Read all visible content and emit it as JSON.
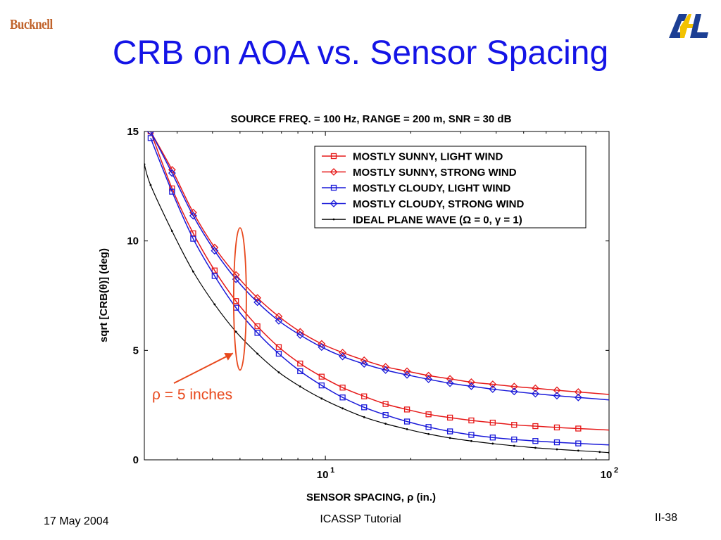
{
  "logos": {
    "left": "Bucknell",
    "right": "ARL"
  },
  "slide_title": "CRB on AOA vs. Sensor Spacing",
  "footer": {
    "date": "17 May 2004",
    "center": "ICASSP Tutorial",
    "page": "II-38"
  },
  "colors": {
    "title": "#1414e6",
    "red": "#e61919",
    "blue": "#1919d9",
    "black": "#000000",
    "annotation": "#e8481c"
  },
  "chart_data": {
    "type": "line",
    "title": "SOURCE FREQ. = 100 Hz, RANGE = 200 m, SNR = 30 dB",
    "xlabel": "SENSOR SPACING, ρ (in.)",
    "ylabel": "sqrt [CRB(θ)] (deg)",
    "xscale": "log",
    "xlim": [
      2.3,
      100
    ],
    "ylim": [
      0,
      15
    ],
    "x_ticks": [
      {
        "value": 10,
        "base": "10",
        "exp": "1"
      },
      {
        "value": 100,
        "base": "10",
        "exp": "2"
      }
    ],
    "y_ticks": [
      0,
      5,
      10,
      15
    ],
    "grid": false,
    "legend_position": "top-right",
    "series": [
      {
        "name": "MOSTLY SUNNY, LIGHT WIND",
        "color": "#e61919",
        "marker": "square",
        "x": [
          2.42,
          2.88,
          3.42,
          4.07,
          4.84,
          5.76,
          6.85,
          8.15,
          9.7,
          11.5,
          13.7,
          16.3,
          19.4,
          23.1,
          27.5,
          32.7,
          38.9,
          46.3,
          55.0,
          65.5,
          77.9
        ],
        "y": [
          15.0,
          12.4,
          10.35,
          8.65,
          7.25,
          6.1,
          5.15,
          4.4,
          3.8,
          3.3,
          2.9,
          2.55,
          2.3,
          2.08,
          1.93,
          1.8,
          1.7,
          1.6,
          1.54,
          1.48,
          1.43
        ]
      },
      {
        "name": "MOSTLY SUNNY, STRONG WIND",
        "color": "#e61919",
        "marker": "diamond",
        "x": [
          2.42,
          2.88,
          3.42,
          4.07,
          4.84,
          5.76,
          6.85,
          8.15,
          9.7,
          11.5,
          13.7,
          16.3,
          19.4,
          23.1,
          27.5,
          32.7,
          38.9,
          46.3,
          55.0,
          65.5,
          77.9
        ],
        "y": [
          15.0,
          13.25,
          11.3,
          9.7,
          8.45,
          7.4,
          6.55,
          5.85,
          5.3,
          4.9,
          4.55,
          4.25,
          4.05,
          3.85,
          3.7,
          3.55,
          3.45,
          3.35,
          3.27,
          3.18,
          3.1
        ]
      },
      {
        "name": "MOSTLY CLOUDY, LIGHT WIND",
        "color": "#1919d9",
        "marker": "square",
        "x": [
          2.42,
          2.88,
          3.42,
          4.07,
          4.84,
          5.76,
          6.85,
          8.15,
          9.7,
          11.5,
          13.7,
          16.3,
          19.4,
          23.1,
          27.5,
          32.7,
          38.9,
          46.3,
          55.0,
          65.5,
          77.9
        ],
        "y": [
          14.7,
          12.25,
          10.1,
          8.4,
          6.95,
          5.8,
          4.85,
          4.05,
          3.4,
          2.85,
          2.4,
          2.05,
          1.75,
          1.5,
          1.3,
          1.14,
          1.02,
          0.93,
          0.86,
          0.8,
          0.75
        ]
      },
      {
        "name": "MOSTLY CLOUDY, STRONG WIND",
        "color": "#1919d9",
        "marker": "diamond",
        "x": [
          2.42,
          2.88,
          3.42,
          4.07,
          4.84,
          5.76,
          6.85,
          8.15,
          9.7,
          11.5,
          13.7,
          16.3,
          19.4,
          23.1,
          27.5,
          32.7,
          38.9,
          46.3,
          55.0,
          65.5,
          77.9
        ],
        "y": [
          15.0,
          13.1,
          11.15,
          9.55,
          8.25,
          7.2,
          6.35,
          5.7,
          5.15,
          4.72,
          4.38,
          4.1,
          3.88,
          3.68,
          3.5,
          3.36,
          3.23,
          3.12,
          3.02,
          2.93,
          2.85
        ]
      },
      {
        "name": "IDEAL PLANE WAVE (Ω = 0, γ = 1)",
        "color": "#000000",
        "marker": "dot",
        "x": [
          2.3,
          2.42,
          2.88,
          3.42,
          4.07,
          4.84,
          5.76,
          6.85,
          8.15,
          9.7,
          11.5,
          13.7,
          16.3,
          19.4,
          23.1,
          27.5,
          32.7,
          38.9,
          46.3,
          55.0,
          65.5,
          77.9,
          92.7,
          100
        ],
        "y": [
          13.5,
          12.55,
          10.45,
          8.6,
          7.1,
          5.85,
          4.85,
          4.0,
          3.35,
          2.8,
          2.35,
          1.95,
          1.65,
          1.4,
          1.18,
          1.0,
          0.86,
          0.74,
          0.64,
          0.55,
          0.48,
          0.42,
          0.36,
          0.33
        ]
      }
    ],
    "annotation": {
      "text": "ρ = 5 inches",
      "x": 5,
      "y_low": 4.1,
      "y_high": 10.6,
      "color": "#e8481c"
    }
  }
}
